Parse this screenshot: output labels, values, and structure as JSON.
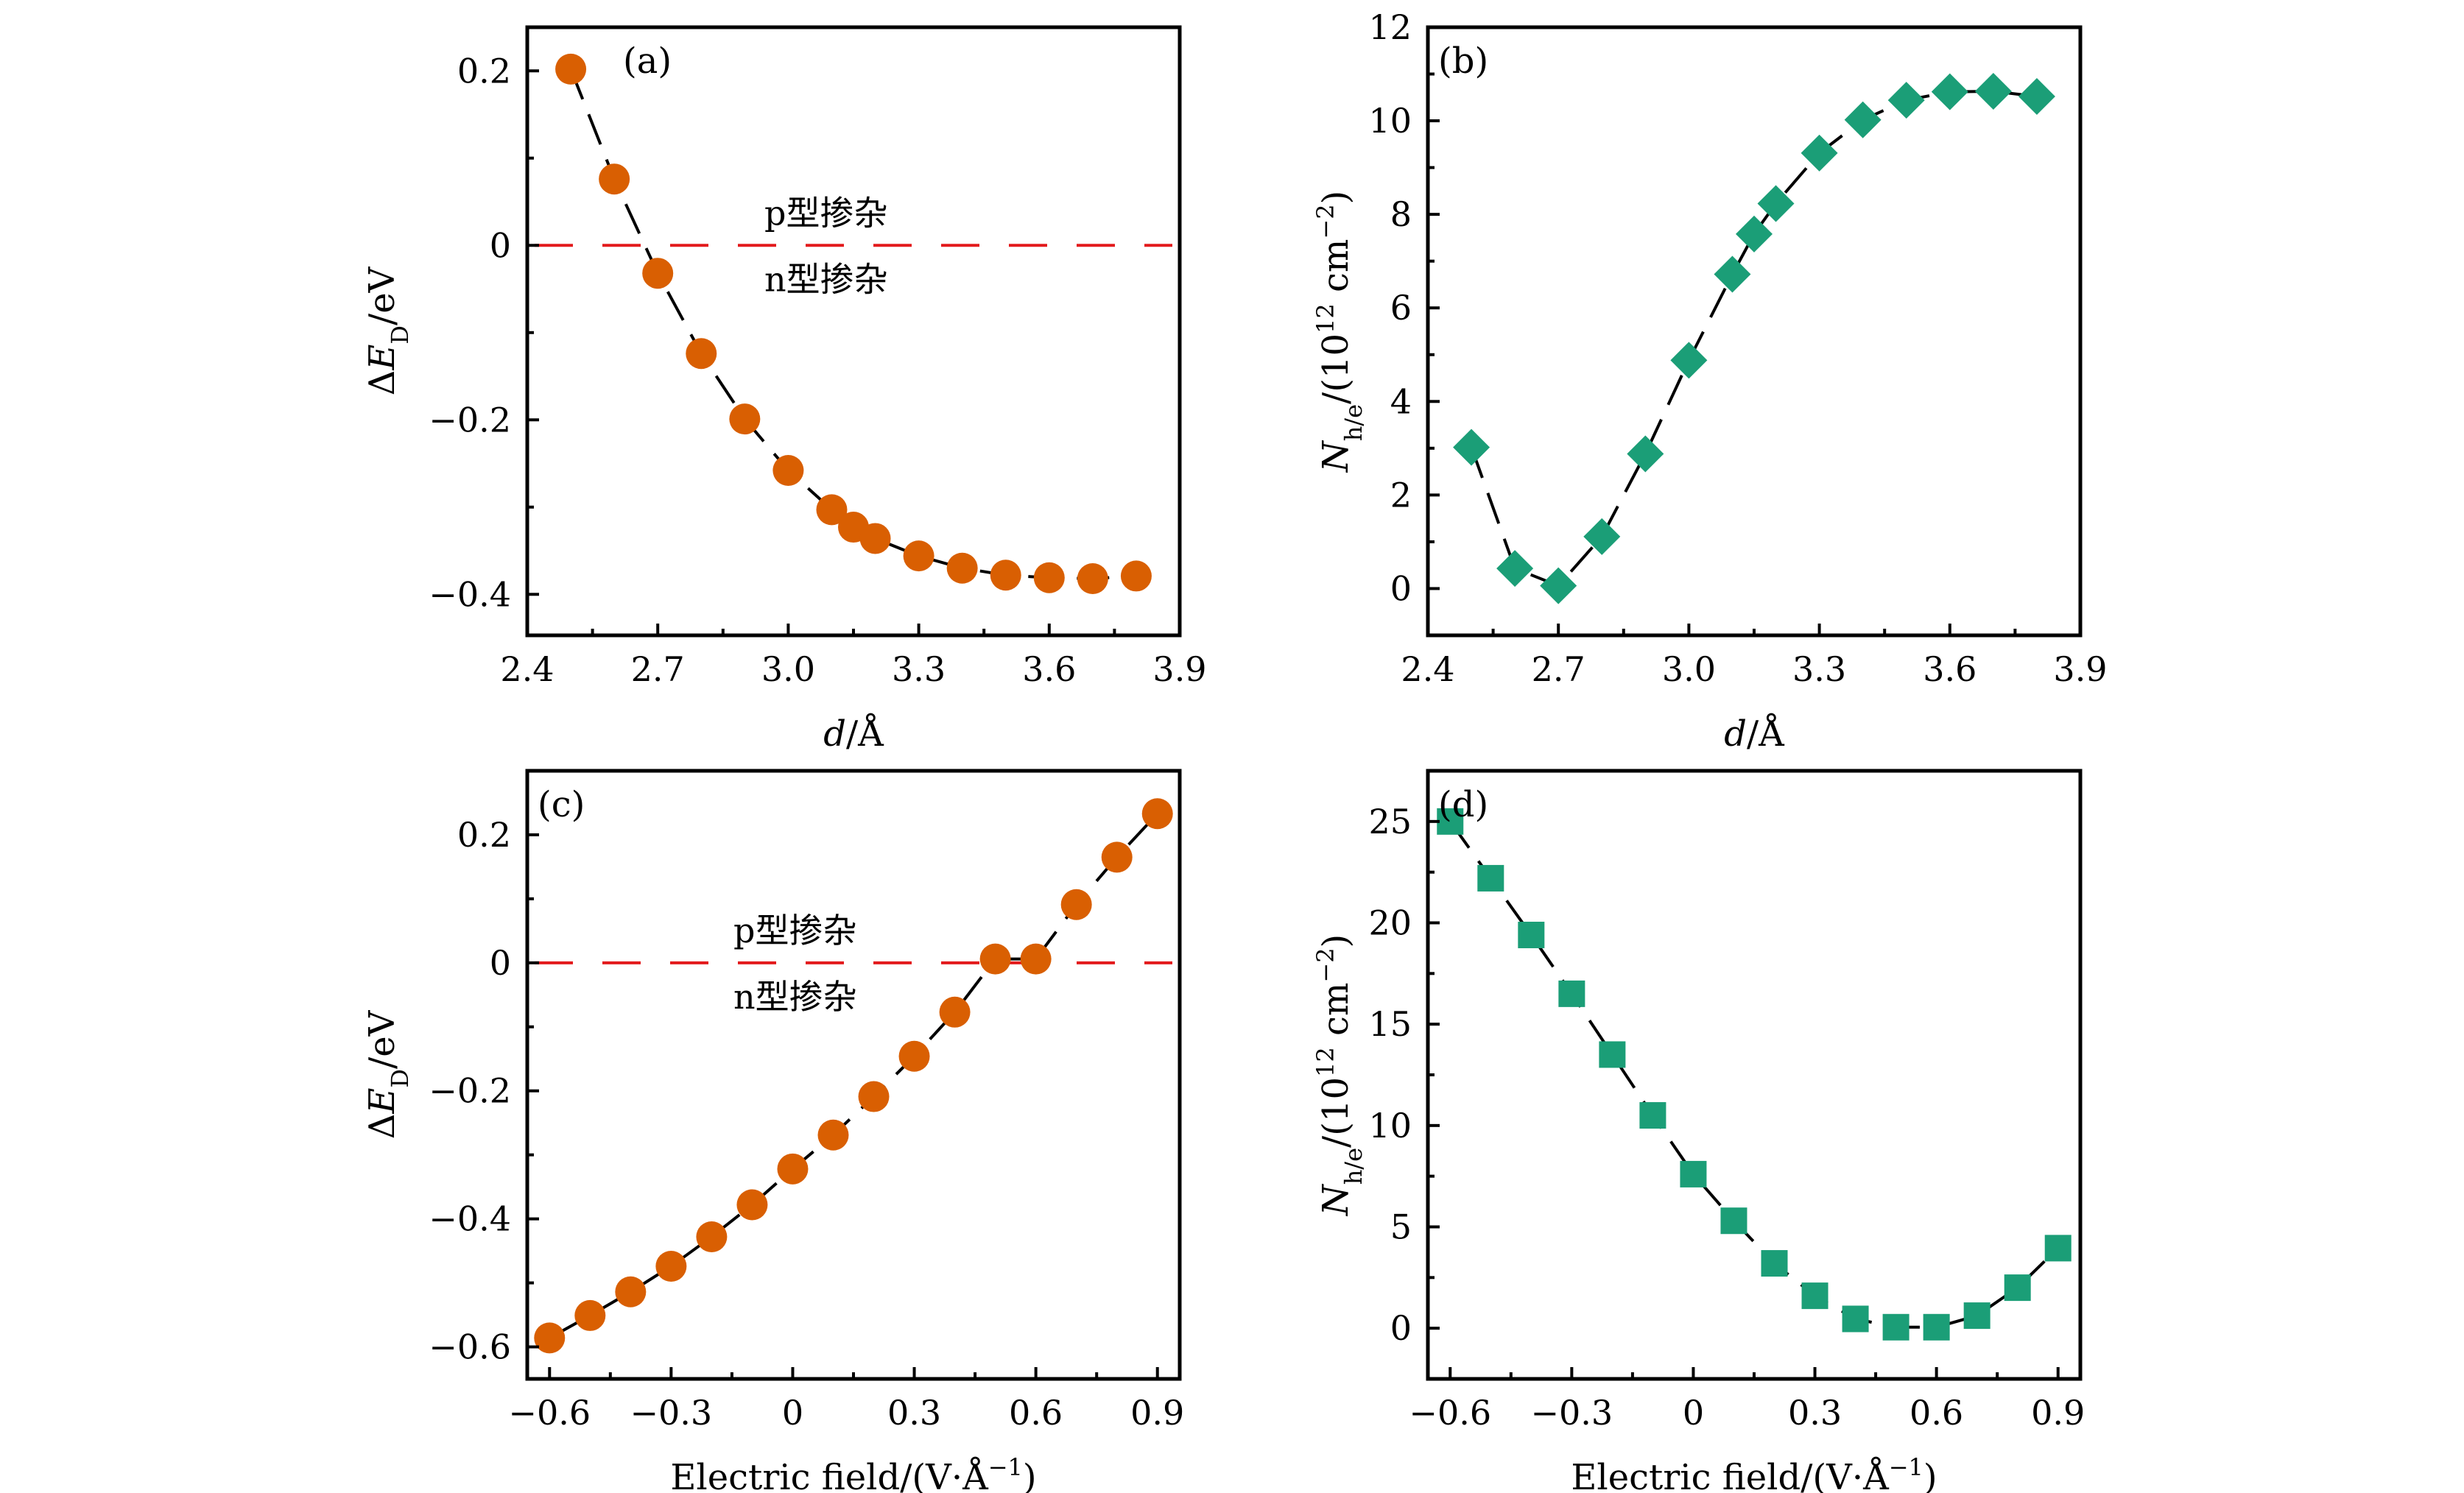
{
  "colors": {
    "orange": "#D95F02",
    "green": "#1B9E77",
    "zero_line": "#E31A1C",
    "axis": "#000000"
  },
  "chart_data": [
    {
      "id": "a",
      "type": "scatter",
      "panel_label": "(a)",
      "marker": "circle",
      "color_key": "orange",
      "xlabel": "d/Å",
      "xlabel_parts": {
        "italic": "d",
        "rest": "/Å"
      },
      "ylabel": "ΔE_D/eV",
      "ylabel_parts": {
        "pre": "Δ",
        "italic": "E",
        "sub": "D",
        "rest": "/eV"
      },
      "xlim": [
        2.4,
        3.9
      ],
      "ylim": [
        -0.447,
        0.25
      ],
      "xticks": [
        2.4,
        2.7,
        3.0,
        3.3,
        3.6,
        3.9
      ],
      "xtick_labels": [
        "2.4",
        "2.7",
        "3.0",
        "3.3",
        "3.6",
        "3.9"
      ],
      "xminor": [
        2.55,
        2.85,
        3.15,
        3.45,
        3.75
      ],
      "yticks": [
        0.2,
        0,
        -0.2,
        -0.4
      ],
      "ytick_labels": [
        "0.2",
        "0",
        "−0.2",
        "−0.4"
      ],
      "yminor": [
        0.1,
        -0.1,
        -0.3
      ],
      "zero_line": true,
      "annotations": {
        "above": "p型掺杂",
        "below": "n型掺杂"
      },
      "x": [
        2.5,
        2.6,
        2.7,
        2.8,
        2.9,
        3.0,
        3.1,
        3.15,
        3.2,
        3.3,
        3.4,
        3.5,
        3.6,
        3.7,
        3.8
      ],
      "y": [
        0.202,
        0.076,
        -0.032,
        -0.124,
        -0.199,
        -0.258,
        -0.303,
        -0.323,
        -0.336,
        -0.356,
        -0.37,
        -0.378,
        -0.381,
        -0.382,
        -0.379
      ]
    },
    {
      "id": "b",
      "type": "scatter",
      "panel_label": "(b)",
      "marker": "diamond",
      "color_key": "green",
      "xlabel": "d/Å",
      "xlabel_parts": {
        "italic": "d",
        "rest": "/Å"
      },
      "ylabel": "N_h/e/(10^12 cm^-2)",
      "ylabel_parts": {
        "italic": "N",
        "sub": "h/e",
        "rest": "/(10",
        "sup1": "12",
        "mid": " cm",
        "sup2": "−2",
        "end": ")"
      },
      "xlim": [
        2.4,
        3.9
      ],
      "ylim": [
        -1,
        12
      ],
      "xticks": [
        2.4,
        2.7,
        3.0,
        3.3,
        3.6,
        3.9
      ],
      "xtick_labels": [
        "2.4",
        "2.7",
        "3.0",
        "3.3",
        "3.6",
        "3.9"
      ],
      "xminor": [
        2.55,
        2.85,
        3.15,
        3.45,
        3.75
      ],
      "yticks": [
        0,
        2,
        4,
        6,
        8,
        10,
        12
      ],
      "ytick_labels": [
        "0",
        "2",
        "4",
        "6",
        "8",
        "10",
        "12"
      ],
      "yminor": [
        1,
        3,
        5,
        7,
        9,
        11
      ],
      "zero_line": false,
      "x": [
        2.5,
        2.6,
        2.7,
        2.8,
        2.9,
        3.0,
        3.1,
        3.15,
        3.2,
        3.3,
        3.4,
        3.5,
        3.6,
        3.7,
        3.8
      ],
      "y": [
        3.02,
        0.43,
        0.06,
        1.11,
        2.88,
        4.88,
        6.72,
        7.58,
        8.23,
        9.31,
        10.02,
        10.44,
        10.62,
        10.63,
        10.52
      ]
    },
    {
      "id": "c",
      "type": "scatter",
      "panel_label": "(c)",
      "marker": "circle",
      "color_key": "orange",
      "xlabel": "Electric field/(V·Å^-1)",
      "xlabel_parts": {
        "rest": "Electric field/(V·Å",
        "sup": "−1",
        "end": ")"
      },
      "ylabel": "ΔE_D/eV",
      "ylabel_parts": {
        "pre": "Δ",
        "italic": "E",
        "sub": "D",
        "rest": "/eV"
      },
      "xlim": [
        -0.655,
        0.955
      ],
      "ylim": [
        -0.65,
        0.3
      ],
      "xticks": [
        -0.6,
        -0.3,
        0,
        0.3,
        0.6,
        0.9
      ],
      "xtick_labels": [
        "−0.6",
        "−0.3",
        "0",
        "0.3",
        "0.6",
        "0.9"
      ],
      "xminor": [
        -0.45,
        -0.15,
        0.15,
        0.45,
        0.75
      ],
      "yticks": [
        0.2,
        0,
        -0.2,
        -0.4,
        -0.6
      ],
      "ytick_labels": [
        "0.2",
        "0",
        "−0.2",
        "−0.4",
        "−0.6"
      ],
      "yminor": [
        0.1,
        -0.1,
        -0.3,
        -0.5
      ],
      "zero_line": true,
      "annotations": {
        "above": "p型掺杂",
        "below": "n型掺杂"
      },
      "x": [
        -0.6,
        -0.5,
        -0.4,
        -0.3,
        -0.2,
        -0.1,
        0.0,
        0.1,
        0.2,
        0.3,
        0.4,
        0.5,
        0.6,
        0.7,
        0.8,
        0.9
      ],
      "y": [
        -0.586,
        -0.551,
        -0.514,
        -0.474,
        -0.428,
        -0.378,
        -0.322,
        -0.269,
        -0.209,
        -0.146,
        -0.077,
        0.006,
        0.006,
        0.091,
        0.165,
        0.233
      ]
    },
    {
      "id": "d",
      "type": "scatter",
      "panel_label": "(d)",
      "marker": "square",
      "color_key": "green",
      "xlabel": "Electric field/(V·Å^-1)",
      "xlabel_parts": {
        "rest": "Electric field/(V·Å",
        "sup": "−1",
        "end": ")"
      },
      "ylabel": "N_h/e/(10^12 cm^-2)",
      "ylabel_parts": {
        "italic": "N",
        "sub": "h/e",
        "rest": "/(10",
        "sup1": "12",
        "mid": " cm",
        "sup2": "−2",
        "end": ")"
      },
      "xlim": [
        -0.655,
        0.955
      ],
      "ylim": [
        -2.5,
        27.5
      ],
      "xticks": [
        -0.6,
        -0.3,
        0,
        0.3,
        0.6,
        0.9
      ],
      "xtick_labels": [
        "−0.6",
        "−0.3",
        "0",
        "0.3",
        "0.6",
        "0.9"
      ],
      "xminor": [
        -0.45,
        -0.15,
        0.15,
        0.45,
        0.75
      ],
      "yticks": [
        0,
        5,
        10,
        15,
        20,
        25
      ],
      "ytick_labels": [
        "0",
        "5",
        "10",
        "15",
        "20",
        "25"
      ],
      "yminor": [
        2.5,
        7.5,
        12.5,
        17.5,
        22.5
      ],
      "zero_line": false,
      "x": [
        -0.6,
        -0.5,
        -0.4,
        -0.3,
        -0.2,
        -0.1,
        0.0,
        0.1,
        0.2,
        0.3,
        0.4,
        0.5,
        0.6,
        0.7,
        0.8,
        0.9
      ],
      "y": [
        25.0,
        22.2,
        19.4,
        16.5,
        13.5,
        10.5,
        7.6,
        5.3,
        3.2,
        1.6,
        0.46,
        0.05,
        0.05,
        0.62,
        2.0,
        3.95
      ]
    }
  ]
}
